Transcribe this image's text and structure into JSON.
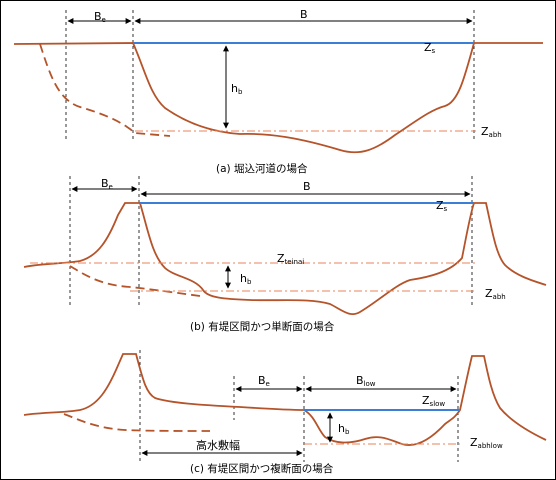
{
  "panels": [
    {
      "caption": "(a) 堀込河道の場合",
      "labels": {
        "be_main": "B",
        "be_sub": "e",
        "b": "B",
        "hb_main": "h",
        "hb_sub": "b",
        "zs_main": "Z",
        "zs_sub": "s",
        "zabh_main": "Z",
        "zabh_sub": "abh"
      }
    },
    {
      "caption": "(b) 有堤区間かつ単断面の場合",
      "labels": {
        "be_main": "B",
        "be_sub": "e",
        "b": "B",
        "hb_main": "h",
        "hb_sub": "b",
        "zs_main": "Z",
        "zs_sub": "s",
        "zteinai_main": "Z",
        "zteinai_sub": "teinai",
        "zabh_main": "Z",
        "zabh_sub": "abh"
      }
    },
    {
      "caption": "(c) 有堤区間かつ複断面の場合",
      "labels": {
        "be_main": "B",
        "be_sub": "e",
        "blow_main": "B",
        "blow_sub": "low",
        "hb_main": "h",
        "hb_sub": "b",
        "zslow_main": "Z",
        "zslow_sub": "slow",
        "zabhlow_main": "Z",
        "zabhlow_sub": "abhlow",
        "highwater": "高水敷幅"
      }
    }
  ],
  "colors": {
    "terrain": "#b5532a",
    "water": "#3a7fd5",
    "dashdot": "#e8845a",
    "guide": "#000000"
  }
}
